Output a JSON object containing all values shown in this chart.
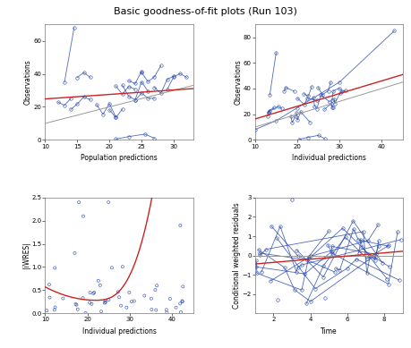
{
  "title": "Basic goodness-of-fit plots (Run 103)",
  "title_fontsize": 8,
  "bg_color": "#ffffff",
  "plot_bg": "#ffffff",
  "blue_color": "#2244aa",
  "red_color": "#cc2222",
  "gray_color": "#999999",
  "markersize": 2.5,
  "linewidth": 0.6,
  "ax1": {
    "xlabel": "Population predictions",
    "ylabel": "Observations",
    "xlim": [
      10,
      33
    ],
    "ylim": [
      0,
      70
    ],
    "xticks": [
      10,
      15,
      20,
      25,
      30
    ],
    "yticks": [
      0,
      20,
      40,
      60
    ]
  },
  "ax2": {
    "xlabel": "Individual predictions",
    "ylabel": "Observations",
    "xlim": [
      10,
      45
    ],
    "ylim": [
      0,
      90
    ],
    "xticks": [
      10,
      20,
      30,
      40
    ],
    "yticks": [
      0,
      20,
      40,
      60,
      80
    ]
  },
  "ax3": {
    "xlabel": "Individual predictions",
    "ylabel": "|iWRES|",
    "xlim": [
      10,
      45
    ],
    "ylim": [
      0.0,
      2.5
    ],
    "xticks": [
      10,
      20,
      30,
      40
    ],
    "yticks": [
      0.0,
      0.5,
      1.0,
      1.5,
      2.0,
      2.5
    ]
  },
  "ax4": {
    "xlabel": "Time",
    "ylabel": "Conditional weighted residuals",
    "xlim": [
      1,
      9
    ],
    "ylim": [
      -3,
      3
    ],
    "xticks": [
      2,
      4,
      6,
      8
    ],
    "yticks": [
      -2,
      -1,
      0,
      1,
      2,
      3
    ]
  },
  "seed": 7
}
